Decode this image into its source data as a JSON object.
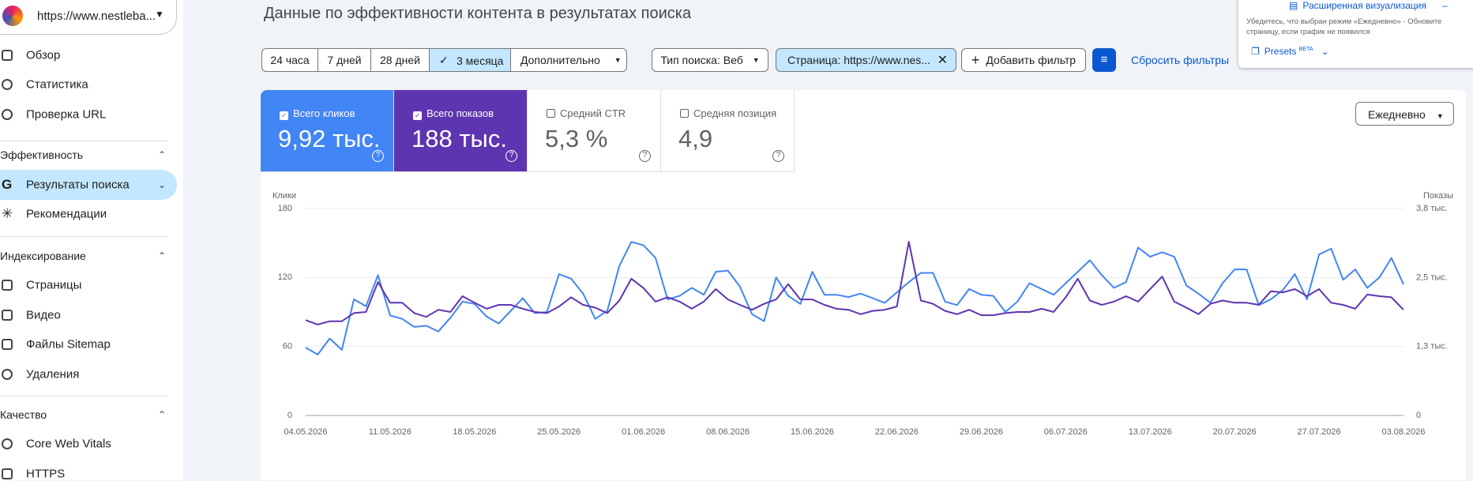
{
  "site": "https://www.nestleba...",
  "sidebar": {
    "top": [
      "Обзор",
      "Статистика",
      "Проверка URL"
    ],
    "sections": [
      {
        "title": "Эффективность",
        "items": [
          "Результаты поиска",
          "Рекомендации"
        ]
      },
      {
        "title": "Индексирование",
        "items": [
          "Страницы",
          "Видео",
          "Файлы Sitemap",
          "Удаления"
        ]
      },
      {
        "title": "Качество",
        "items": [
          "Core Web Vitals",
          "HTTPS"
        ]
      }
    ]
  },
  "header": {
    "title": "Данные по эффективности контента в результатах поиска"
  },
  "filters": {
    "ranges": [
      "24 часа",
      "7 дней",
      "28 дней",
      "3 месяца"
    ],
    "more": "Дополнительно",
    "search_type": "Тип поиска: Веб",
    "page_filter": "Страница: https://www.nes...",
    "add_filter": "Добавить фильтр",
    "reset": "Сбросить фильтры"
  },
  "metrics": [
    {
      "label": "Всего кликов",
      "value": "9,92 тыс."
    },
    {
      "label": "Всего показов",
      "value": "188 тыс."
    },
    {
      "label": "Средний CTR",
      "value": "5,3 %"
    },
    {
      "label": "Средняя позиция",
      "value": "4,9"
    }
  ],
  "granularity": "Ежедневно",
  "panel": {
    "title": "Расширенная визуализация",
    "note": "Убедитесь, что выбран режим «Ежедневно» - Обновите страницу, если график не появился",
    "presets": "Presets",
    "beta": "BETA"
  },
  "chart_data": {
    "type": "line",
    "y_label": "Клики",
    "y2_label": "Показы",
    "grid": true,
    "x": [
      "04.05.2026",
      "05.05.2026",
      "06.05.2026",
      "07.05.2026",
      "08.05.2026",
      "09.05.2026",
      "10.05.2026",
      "11.05.2026",
      "12.05.2026",
      "13.05.2026",
      "14.05.2026",
      "15.05.2026",
      "16.05.2026",
      "17.05.2026",
      "18.05.2026",
      "19.05.2026",
      "20.05.2026",
      "21.05.2026",
      "22.05.2026",
      "23.05.2026",
      "24.05.2026",
      "25.05.2026",
      "26.05.2026",
      "27.05.2026",
      "28.05.2026",
      "29.05.2026",
      "30.05.2026",
      "31.05.2026",
      "01.06.2026",
      "02.06.2026",
      "03.06.2026",
      "04.06.2026",
      "05.06.2026",
      "06.06.2026",
      "07.06.2026",
      "08.06.2026",
      "09.06.2026",
      "10.06.2026",
      "11.06.2026",
      "12.06.2026",
      "13.06.2026",
      "14.06.2026",
      "15.06.2026",
      "16.06.2026",
      "17.06.2026",
      "18.06.2026",
      "19.06.2026",
      "20.06.2026",
      "21.06.2026",
      "22.06.2026",
      "23.06.2026",
      "24.06.2026",
      "25.06.2026",
      "26.06.2026",
      "27.06.2026",
      "28.06.2026",
      "29.06.2026",
      "30.06.2026",
      "01.07.2026",
      "02.07.2026",
      "03.07.2026",
      "04.07.2026",
      "05.07.2026",
      "06.07.2026",
      "07.07.2026",
      "08.07.2026",
      "09.07.2026",
      "10.07.2026",
      "11.07.2026",
      "12.07.2026",
      "13.07.2026",
      "14.07.2026",
      "15.07.2026",
      "16.07.2026",
      "17.07.2026",
      "18.07.2026",
      "19.07.2026",
      "20.07.2026",
      "21.07.2026",
      "22.07.2026",
      "23.07.2026",
      "24.07.2026",
      "25.07.2026",
      "26.07.2026",
      "27.07.2026",
      "28.07.2026",
      "29.07.2026",
      "30.07.2026",
      "31.07.2026",
      "01.08.2026",
      "02.08.2026",
      "03.08.2026"
    ],
    "xticks": [
      "04.05.2026",
      "11.05.2026",
      "18.05.2026",
      "25.05.2026",
      "01.06.2026",
      "08.06.2026",
      "15.06.2026",
      "22.06.2026",
      "29.06.2026",
      "06.07.2026",
      "13.07.2026",
      "20.07.2026",
      "27.07.2026",
      "03.08.2026"
    ],
    "ylim": [
      0,
      180
    ],
    "yticks": [
      0,
      60,
      120,
      180
    ],
    "y2lim": [
      0,
      3800
    ],
    "y2ticks": [
      0,
      {
        "value": 1267,
        "label": "1,3 тыс."
      },
      {
        "value": 2533,
        "label": "2,5 тыс."
      },
      {
        "value": 3800,
        "label": "3,8 тыс."
      }
    ],
    "series": [
      {
        "color": "#4285f4",
        "values": [
          59,
          53,
          67,
          57,
          101,
          95,
          122,
          87,
          84,
          77,
          78,
          73,
          85,
          99,
          97,
          86,
          80,
          91,
          102,
          89,
          90,
          123,
          119,
          106,
          84,
          91,
          130,
          151,
          148,
          137,
          101,
          104,
          111,
          105,
          125,
          126,
          112,
          88,
          82,
          120,
          104,
          97,
          125,
          105,
          105,
          103,
          106,
          102,
          98,
          107,
          116,
          124,
          124,
          99,
          96,
          110,
          105,
          104,
          90,
          99,
          115,
          110,
          105,
          115,
          125,
          135,
          122,
          111,
          116,
          146,
          138,
          142,
          138,
          113,
          106,
          98,
          115,
          127,
          127,
          96,
          101,
          109,
          123,
          101,
          140,
          145,
          118,
          127,
          111,
          120,
          137,
          114
        ]
      },
      {
        "color": "#5e35b1",
        "axis": "y2",
        "values": [
          1750,
          1670,
          1730,
          1730,
          1880,
          1900,
          2450,
          2070,
          2070,
          1880,
          1810,
          1940,
          1900,
          2190,
          2070,
          1960,
          2030,
          2030,
          1960,
          1900,
          1880,
          2000,
          2170,
          2030,
          1980,
          1880,
          2110,
          2510,
          2340,
          2090,
          2170,
          2090,
          1960,
          2090,
          2320,
          2130,
          2030,
          1940,
          2050,
          2130,
          2410,
          2130,
          2130,
          2030,
          1960,
          1940,
          1860,
          1920,
          1940,
          2000,
          3190,
          2110,
          2050,
          1920,
          1860,
          1940,
          1840,
          1840,
          1880,
          1900,
          1900,
          1960,
          1900,
          2170,
          2510,
          2110,
          2030,
          2090,
          2190,
          2090,
          2320,
          2550,
          2090,
          1980,
          1860,
          2050,
          2110,
          2070,
          2070,
          2030,
          2280,
          2260,
          2320,
          2190,
          2320,
          2070,
          2030,
          1960,
          2220,
          2190,
          2170,
          1940
        ]
      }
    ]
  }
}
